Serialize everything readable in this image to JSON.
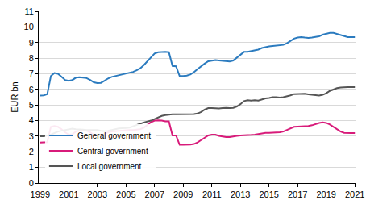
{
  "chart_data": {
    "type": "line",
    "y_label": "EUR bn",
    "x": [
      1999,
      1999.25,
      1999.5,
      1999.75,
      2000,
      2000.25,
      2000.5,
      2000.75,
      2001,
      2001.25,
      2001.5,
      2001.75,
      2002,
      2002.25,
      2002.5,
      2002.75,
      2003,
      2003.25,
      2003.5,
      2003.75,
      2004,
      2004.25,
      2004.5,
      2004.75,
      2005,
      2005.25,
      2005.5,
      2005.75,
      2006,
      2006.25,
      2006.5,
      2006.75,
      2007,
      2007.25,
      2007.5,
      2007.75,
      2008,
      2008.25,
      2008.5,
      2008.75,
      2009,
      2009.25,
      2009.5,
      2009.75,
      2010,
      2010.25,
      2010.5,
      2010.75,
      2011,
      2011.25,
      2011.5,
      2011.75,
      2012,
      2012.25,
      2012.5,
      2012.75,
      2013,
      2013.25,
      2013.5,
      2013.75,
      2014,
      2014.25,
      2014.5,
      2014.75,
      2015,
      2015.25,
      2015.5,
      2015.75,
      2016,
      2016.25,
      2016.5,
      2016.75,
      2017,
      2017.25,
      2017.5,
      2017.75,
      2018,
      2018.25,
      2018.5,
      2018.75,
      2019,
      2019.25,
      2019.5,
      2019.75,
      2020,
      2020.25,
      2020.5,
      2020.75,
      2021
    ],
    "series": [
      {
        "name": "General government",
        "color": "#2b7bbf",
        "values": [
          5.6,
          5.62,
          5.7,
          6.85,
          7.05,
          7.0,
          6.8,
          6.6,
          6.55,
          6.6,
          6.75,
          6.78,
          6.75,
          6.72,
          6.6,
          6.45,
          6.4,
          6.42,
          6.55,
          6.7,
          6.8,
          6.85,
          6.9,
          6.95,
          7.0,
          7.05,
          7.12,
          7.22,
          7.35,
          7.55,
          7.8,
          8.05,
          8.3,
          8.38,
          8.4,
          8.4,
          8.38,
          7.5,
          7.48,
          6.85,
          6.85,
          6.88,
          6.95,
          7.1,
          7.3,
          7.5,
          7.65,
          7.8,
          7.85,
          7.88,
          7.85,
          7.82,
          7.8,
          7.78,
          7.85,
          8.05,
          8.25,
          8.4,
          8.4,
          8.45,
          8.5,
          8.55,
          8.65,
          8.72,
          8.75,
          8.78,
          8.8,
          8.8,
          8.85,
          8.95,
          9.1,
          9.25,
          9.32,
          9.35,
          9.32,
          9.3,
          9.32,
          9.35,
          9.4,
          9.5,
          9.58,
          9.62,
          9.62,
          9.55,
          9.45,
          9.38,
          9.35,
          9.35,
          9.35
        ]
      },
      {
        "name": "Central government",
        "color": "#d81b7a",
        "values": [
          2.6,
          2.62,
          2.62,
          3.6,
          3.65,
          3.6,
          3.45,
          3.25,
          3.1,
          3.12,
          3.3,
          3.35,
          3.38,
          3.35,
          3.25,
          3.1,
          3.05,
          3.05,
          3.15,
          3.25,
          3.3,
          3.32,
          3.35,
          3.38,
          3.38,
          3.4,
          3.4,
          3.42,
          3.45,
          3.55,
          3.75,
          3.9,
          4.0,
          4.02,
          4.0,
          3.95,
          3.95,
          3.05,
          3.05,
          2.45,
          2.45,
          2.45,
          2.47,
          2.5,
          2.6,
          2.75,
          2.9,
          3.05,
          3.1,
          3.1,
          3.02,
          2.98,
          2.95,
          2.95,
          3.0,
          3.02,
          3.05,
          3.05,
          3.05,
          3.08,
          3.1,
          3.15,
          3.2,
          3.22,
          3.22,
          3.22,
          3.25,
          3.25,
          3.3,
          3.4,
          3.52,
          3.6,
          3.62,
          3.62,
          3.62,
          3.65,
          3.7,
          3.78,
          3.85,
          3.88,
          3.85,
          3.75,
          3.6,
          3.45,
          3.3,
          3.22,
          3.2,
          3.2,
          3.2
        ]
      },
      {
        "name": "Local government",
        "color": "#555555",
        "values": [
          3.0,
          3.0,
          3.05,
          3.1,
          3.2,
          3.3,
          3.35,
          3.4,
          3.45,
          3.48,
          3.45,
          3.45,
          3.42,
          3.4,
          3.4,
          3.42,
          3.4,
          3.35,
          3.32,
          3.35,
          3.42,
          3.45,
          3.5,
          3.5,
          3.52,
          3.55,
          3.62,
          3.7,
          3.8,
          3.88,
          3.92,
          4.0,
          4.1,
          4.2,
          4.3,
          4.35,
          4.38,
          4.4,
          4.4,
          4.4,
          4.4,
          4.4,
          4.4,
          4.42,
          4.45,
          4.55,
          4.7,
          4.8,
          4.8,
          4.78,
          4.78,
          4.8,
          4.82,
          4.8,
          4.82,
          4.9,
          5.05,
          5.25,
          5.3,
          5.28,
          5.3,
          5.28,
          5.35,
          5.42,
          5.45,
          5.5,
          5.5,
          5.48,
          5.5,
          5.55,
          5.62,
          5.7,
          5.7,
          5.72,
          5.72,
          5.68,
          5.65,
          5.62,
          5.6,
          5.65,
          5.75,
          5.9,
          6.0,
          6.08,
          6.12,
          6.15,
          6.15,
          6.15,
          6.15
        ]
      }
    ],
    "xlim": [
      1998.9,
      2021.1
    ],
    "xticks": [
      1999,
      2001,
      2003,
      2005,
      2007,
      2009,
      2011,
      2013,
      2015,
      2017,
      2019,
      2021
    ],
    "ylim": [
      0,
      11
    ],
    "yticks": [
      0,
      1,
      2,
      3,
      4,
      5,
      6,
      7,
      8,
      9,
      10,
      11
    ],
    "grid": true,
    "legend": "lower left"
  }
}
